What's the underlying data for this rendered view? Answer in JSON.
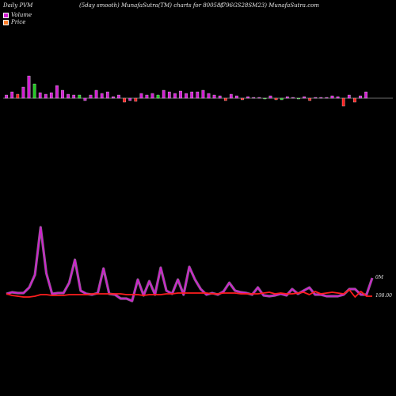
{
  "header": {
    "left": "Daily PVM",
    "center": "(5day smooth) MunafaSutra(TM) charts for 800581",
    "right": "(796GS28SM23) MunafaSutra.com"
  },
  "legend": [
    {
      "label": "Volume",
      "color": "#d21ed2"
    },
    {
      "label": "Price",
      "color": "#ff7f2a"
    }
  ],
  "chart_data": {
    "type": "line",
    "volume_bars": {
      "values": [
        4,
        8,
        5,
        14,
        28,
        18,
        7,
        5,
        7,
        16,
        10,
        5,
        4,
        4,
        -3,
        4,
        10,
        6,
        8,
        2,
        4,
        -5,
        -3,
        -4,
        6,
        4,
        6,
        4,
        10,
        8,
        6,
        9,
        6,
        8,
        8,
        10,
        6,
        4,
        3,
        -3,
        5,
        3,
        -2,
        2,
        1,
        1,
        -1,
        3,
        -2,
        -2,
        2,
        1,
        -1,
        2,
        -3,
        1,
        1,
        1,
        3,
        2,
        -10,
        4,
        -5,
        3,
        8
      ],
      "colors": [
        "#d21ed2",
        "#d21ed2",
        "#ff1e1e",
        "#d21ed2",
        "#d21ed2",
        "#22cc22",
        "#d21ed2",
        "#d21ed2",
        "#d21ed2",
        "#d21ed2",
        "#d21ed2",
        "#d21ed2",
        "#d21ed2",
        "#22cc22",
        "#d21ed2",
        "#d21ed2",
        "#d21ed2",
        "#d21ed2",
        "#d21ed2",
        "#d21ed2",
        "#d21ed2",
        "#ff1e1e",
        "#d21ed2",
        "#ff1e1e",
        "#d21ed2",
        "#d21ed2",
        "#d21ed2",
        "#22cc22",
        "#d21ed2",
        "#d21ed2",
        "#d21ed2",
        "#d21ed2",
        "#d21ed2",
        "#d21ed2",
        "#d21ed2",
        "#d21ed2",
        "#d21ed2",
        "#d21ed2",
        "#d21ed2",
        "#ff1e1e",
        "#d21ed2",
        "#d21ed2",
        "#ff1e1e",
        "#d21ed2",
        "#d21ed2",
        "#d21ed2",
        "#22cc22",
        "#d21ed2",
        "#ff1e1e",
        "#22cc22",
        "#d21ed2",
        "#d21ed2",
        "#22cc22",
        "#d21ed2",
        "#ff1e1e",
        "#d21ed2",
        "#d21ed2",
        "#d21ed2",
        "#d21ed2",
        "#d21ed2",
        "#ff1e1e",
        "#d21ed2",
        "#ff1e1e",
        "#d21ed2",
        "#d21ed2"
      ]
    },
    "series": [
      {
        "color": "#d21ed2",
        "values": [
          4,
          6,
          5,
          5,
          12,
          28,
          88,
          30,
          4,
          5,
          5,
          18,
          47,
          8,
          4,
          3,
          5,
          36,
          4,
          3,
          -2,
          -2,
          -5,
          22,
          2,
          20,
          3,
          37,
          8,
          4,
          22,
          3,
          38,
          22,
          10,
          3,
          5,
          3,
          7,
          18,
          8,
          6,
          5,
          3,
          12,
          2,
          1,
          2,
          4,
          2,
          10,
          4,
          8,
          12,
          3,
          3,
          1,
          1,
          1,
          3,
          10,
          10,
          3,
          3,
          24
        ]
      },
      {
        "color": "#ff1e1e",
        "values": [
          4,
          2,
          1,
          0,
          0,
          1,
          3,
          3,
          2,
          2,
          2,
          3,
          3,
          3,
          3,
          4,
          4,
          4,
          4,
          4,
          4,
          3,
          3,
          3,
          2,
          3,
          3,
          3,
          4,
          4,
          5,
          5,
          5,
          5,
          5,
          5,
          4,
          4,
          5,
          5,
          5,
          4,
          4,
          4,
          4,
          5,
          6,
          4,
          5,
          4,
          4,
          5,
          6,
          3,
          7,
          4,
          5,
          6,
          5,
          4,
          9,
          0,
          7,
          1,
          1
        ]
      }
    ],
    "labels": {
      "volume_right": "0M",
      "price_right": "108.00"
    }
  }
}
